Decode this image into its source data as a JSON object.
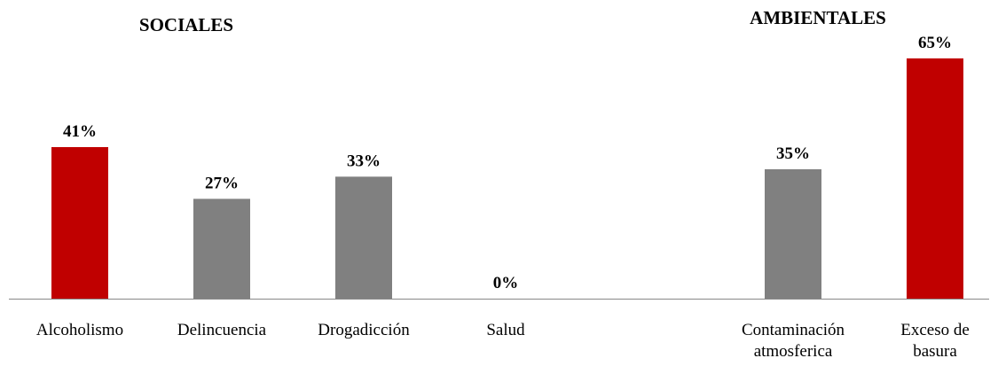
{
  "chart_data": [
    {
      "type": "bar",
      "title": "SOCIALES",
      "categories": [
        "Alcoholismo",
        "Delincuencia",
        "Drogadicción",
        "Salud"
      ],
      "values": [
        41,
        27,
        33,
        0
      ],
      "value_labels": [
        "41%",
        "27%",
        "33%",
        "0%"
      ],
      "colors": [
        "#c00000",
        "#808080",
        "#808080",
        "#808080"
      ],
      "ylim": [
        0,
        70
      ]
    },
    {
      "type": "bar",
      "title": "AMBIENTALES",
      "categories": [
        [
          "Contaminación",
          "atmosferica"
        ],
        [
          "Exceso de",
          "basura"
        ]
      ],
      "values": [
        35,
        65
      ],
      "value_labels": [
        "35%",
        "65%"
      ],
      "colors": [
        "#808080",
        "#c00000"
      ],
      "ylim": [
        0,
        70
      ]
    }
  ]
}
